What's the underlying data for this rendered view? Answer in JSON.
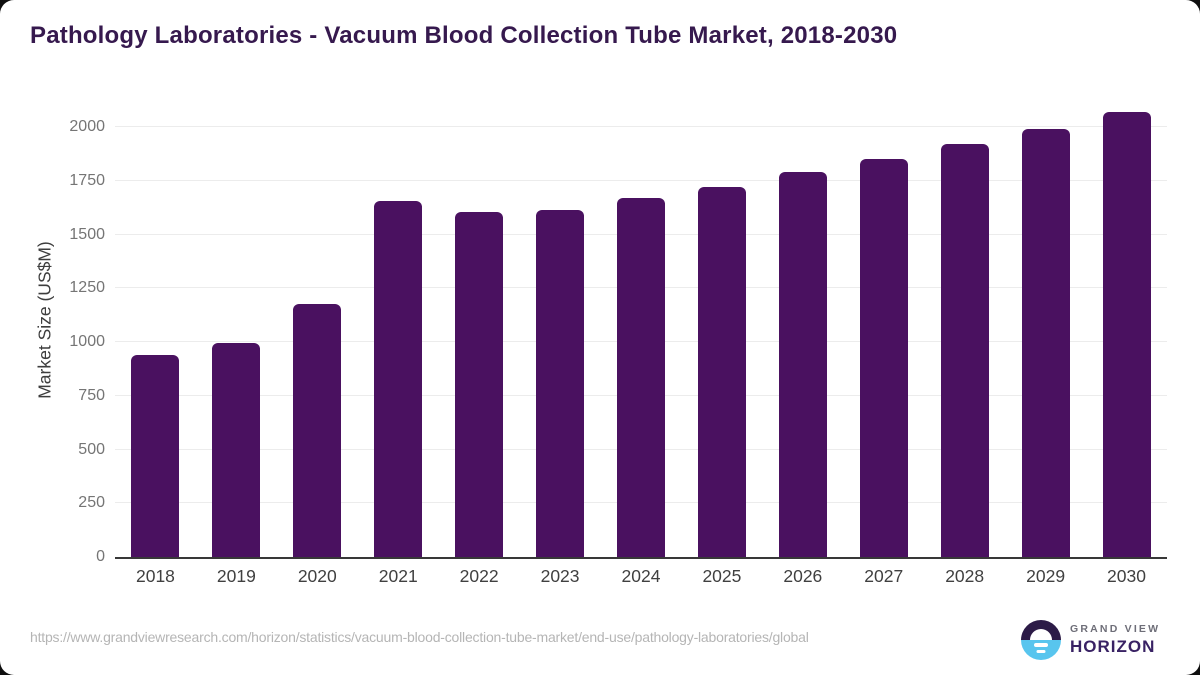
{
  "page": {
    "title": "Pathology Laboratories - Vacuum Blood Collection Tube Market, 2018-2030"
  },
  "chart_data": {
    "type": "bar",
    "title": "Pathology Laboratories - Vacuum Blood Collection Tube Market, 2018-2030",
    "categories": [
      "2018",
      "2019",
      "2020",
      "2021",
      "2022",
      "2023",
      "2024",
      "2025",
      "2026",
      "2027",
      "2028",
      "2029",
      "2030"
    ],
    "values": [
      940,
      995,
      1175,
      1655,
      1605,
      1615,
      1668,
      1721,
      1790,
      1853,
      1922,
      1990,
      2070
    ],
    "xlabel": "",
    "ylabel": "Market Size (US$M)",
    "ylim": [
      0,
      2000
    ],
    "yticks": [
      0,
      250,
      500,
      750,
      1000,
      1250,
      1500,
      1750,
      2000
    ],
    "grid": true,
    "legend": false,
    "bar_color": "#4a1160"
  },
  "footer": {
    "source_url": "https://www.grandviewresearch.com/horizon/statistics/vacuum-blood-collection-tube-market/end-use/pathology-laboratories/global",
    "brand": {
      "top": "GRAND VIEW",
      "bottom": "HORIZON"
    }
  },
  "colors": {
    "background": "#0f0f0f",
    "card": "#ffffff",
    "title": "#36194e",
    "bar": "#4a1160",
    "gridline": "#ececec",
    "axis_line": "#383838",
    "y_tick_label": "#757575",
    "x_tick_label": "#404040",
    "url_text": "#b5b5b5",
    "logo_dark": "#2c1b47",
    "logo_blue": "#58c5ee"
  }
}
